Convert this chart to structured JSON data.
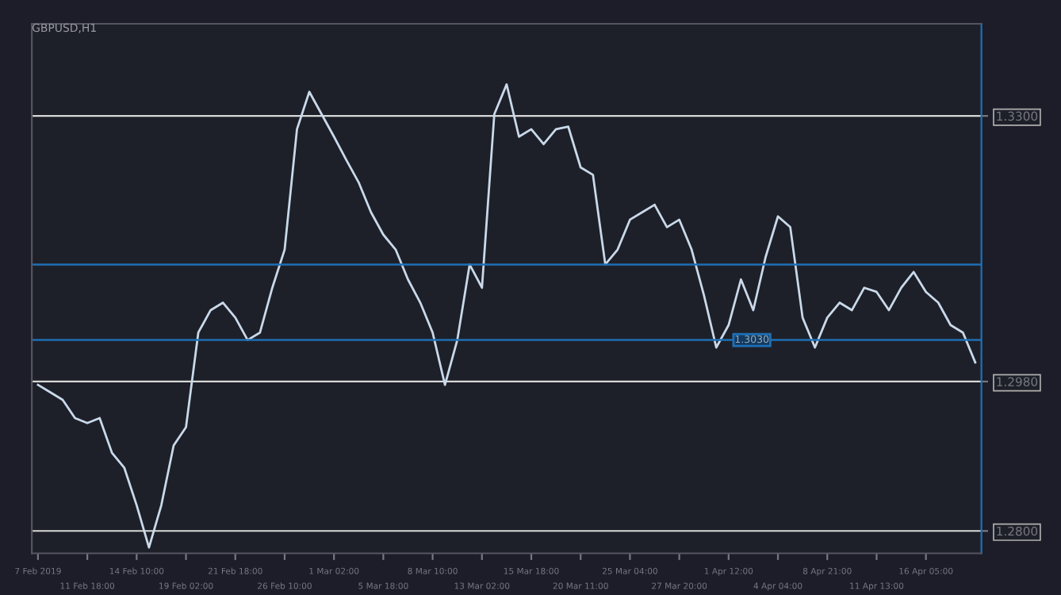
{
  "chart_data": {
    "type": "line",
    "title": "GBPUSD,H1",
    "categories": [
      "7 Feb 2019",
      null,
      null,
      null,
      "11 Feb 18:00",
      null,
      null,
      null,
      "14 Feb 10:00",
      null,
      null,
      null,
      "19 Feb 02:00",
      null,
      null,
      null,
      "21 Feb 18:00",
      null,
      null,
      null,
      "26 Feb 10:00",
      null,
      null,
      null,
      "1 Mar 02:00",
      null,
      null,
      null,
      "5 Mar 18:00",
      null,
      null,
      null,
      "8 Mar 10:00",
      null,
      null,
      null,
      "13 Mar 02:00",
      null,
      null,
      null,
      "15 Mar 18:00",
      null,
      null,
      null,
      "20 Mar 11:00",
      null,
      null,
      null,
      "25 Mar 04:00",
      null,
      null,
      null,
      "27 Mar 20:00",
      null,
      null,
      null,
      "1 Apr 12:00",
      null,
      null,
      null,
      "4 Apr 04:00",
      null,
      null,
      null,
      "8 Apr 21:00",
      null,
      null,
      null,
      "11 Apr 13:00",
      null,
      null,
      null,
      "16 Apr 05:00",
      null,
      null,
      null,
      null
    ],
    "series": [
      {
        "color": "#c9d9ea",
        "values": [
          1.2976,
          1.2967,
          1.2958,
          1.2936,
          1.293,
          1.2936,
          1.2894,
          1.2876,
          1.2831,
          1.278,
          1.2831,
          1.2903,
          1.2925,
          1.3039,
          1.3066,
          1.3075,
          1.3057,
          1.303,
          1.3039,
          1.3093,
          1.3139,
          1.3284,
          1.3329,
          1.3302,
          1.3275,
          1.3247,
          1.322,
          1.3184,
          1.3157,
          1.3139,
          1.3103,
          1.3075,
          1.3039,
          1.2976,
          1.303,
          1.3121,
          1.3093,
          1.3302,
          1.3338,
          1.3275,
          1.3284,
          1.3266,
          1.3284,
          1.3287,
          1.3238,
          1.3229,
          1.3121,
          1.3139,
          1.3175,
          1.3184,
          1.3193,
          1.3166,
          1.3175,
          1.3139,
          1.3084,
          1.3021,
          1.3048,
          1.3103,
          1.3066,
          1.313,
          1.3179,
          1.3166,
          1.3057,
          1.3021,
          1.3057,
          1.3075,
          1.3066,
          1.3093,
          1.3088,
          1.3066,
          1.3093,
          1.3112,
          1.3088,
          1.3075,
          1.3048,
          1.3039,
          1.3003
        ]
      }
    ],
    "ylim": [
      1.2773,
      1.3411
    ],
    "yticks": [
      {
        "value": 1.28,
        "label": "1.2800"
      },
      {
        "value": 1.298,
        "label": "1.2980"
      },
      {
        "value": 1.33,
        "label": "1.3300"
      }
    ],
    "grid": "y",
    "ref_lines": [
      {
        "axis": "y",
        "value": 1.3121,
        "color": "#1f6fb5"
      },
      {
        "axis": "y",
        "value": 1.303,
        "label": "1.3030",
        "color": "#1f6fb5"
      }
    ],
    "marker": "none",
    "line_style": "solid"
  }
}
